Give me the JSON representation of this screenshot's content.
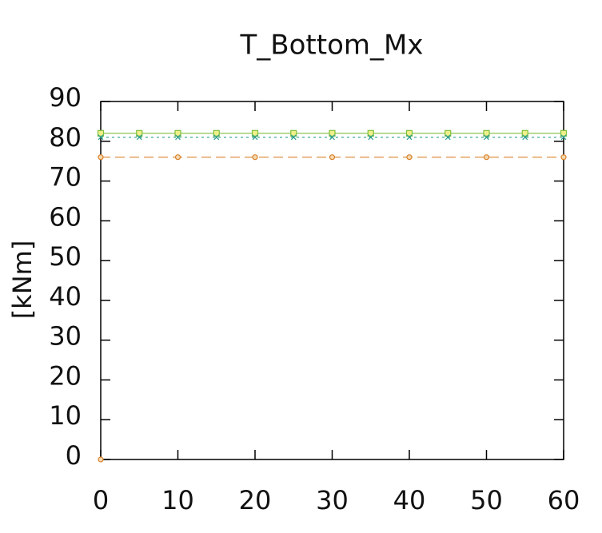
{
  "chart_data": {
    "type": "line",
    "title": "T_Bottom_Mx",
    "ylabel": "[kNm]",
    "xlim": [
      0,
      60
    ],
    "xticks": [
      0,
      10,
      20,
      30,
      40,
      50,
      60
    ],
    "ylim": [
      0,
      90
    ],
    "yticks": [
      0,
      10,
      20,
      30,
      40,
      50,
      60,
      70,
      80,
      90
    ],
    "series": [
      {
        "color": "#7fbf3f",
        "marker": "square",
        "dash": "none",
        "x": [
          0,
          5,
          10,
          15,
          20,
          25,
          30,
          35,
          40,
          45,
          50,
          55,
          60
        ],
        "values": [
          82,
          82,
          82,
          82,
          82,
          82,
          82,
          82,
          82,
          82,
          82,
          82,
          82
        ]
      },
      {
        "color": "#2a9d8f",
        "marker": "cross",
        "dash": "3,4",
        "x": [
          0,
          5,
          10,
          15,
          20,
          25,
          30,
          35,
          40,
          45,
          50,
          55,
          60
        ],
        "values": [
          81,
          81,
          81,
          81,
          81,
          81,
          81,
          81,
          81,
          81,
          81,
          81,
          81
        ]
      },
      {
        "color": "#d9822b",
        "marker": "circle",
        "dash": "12,6",
        "x": [
          0,
          10,
          20,
          30,
          40,
          50,
          60
        ],
        "values": [
          76,
          76,
          76,
          76,
          76,
          76,
          76
        ]
      },
      {
        "color": "#d9822b",
        "marker": "circle",
        "dash": "none",
        "x": [
          0
        ],
        "values": [
          0
        ]
      }
    ]
  }
}
